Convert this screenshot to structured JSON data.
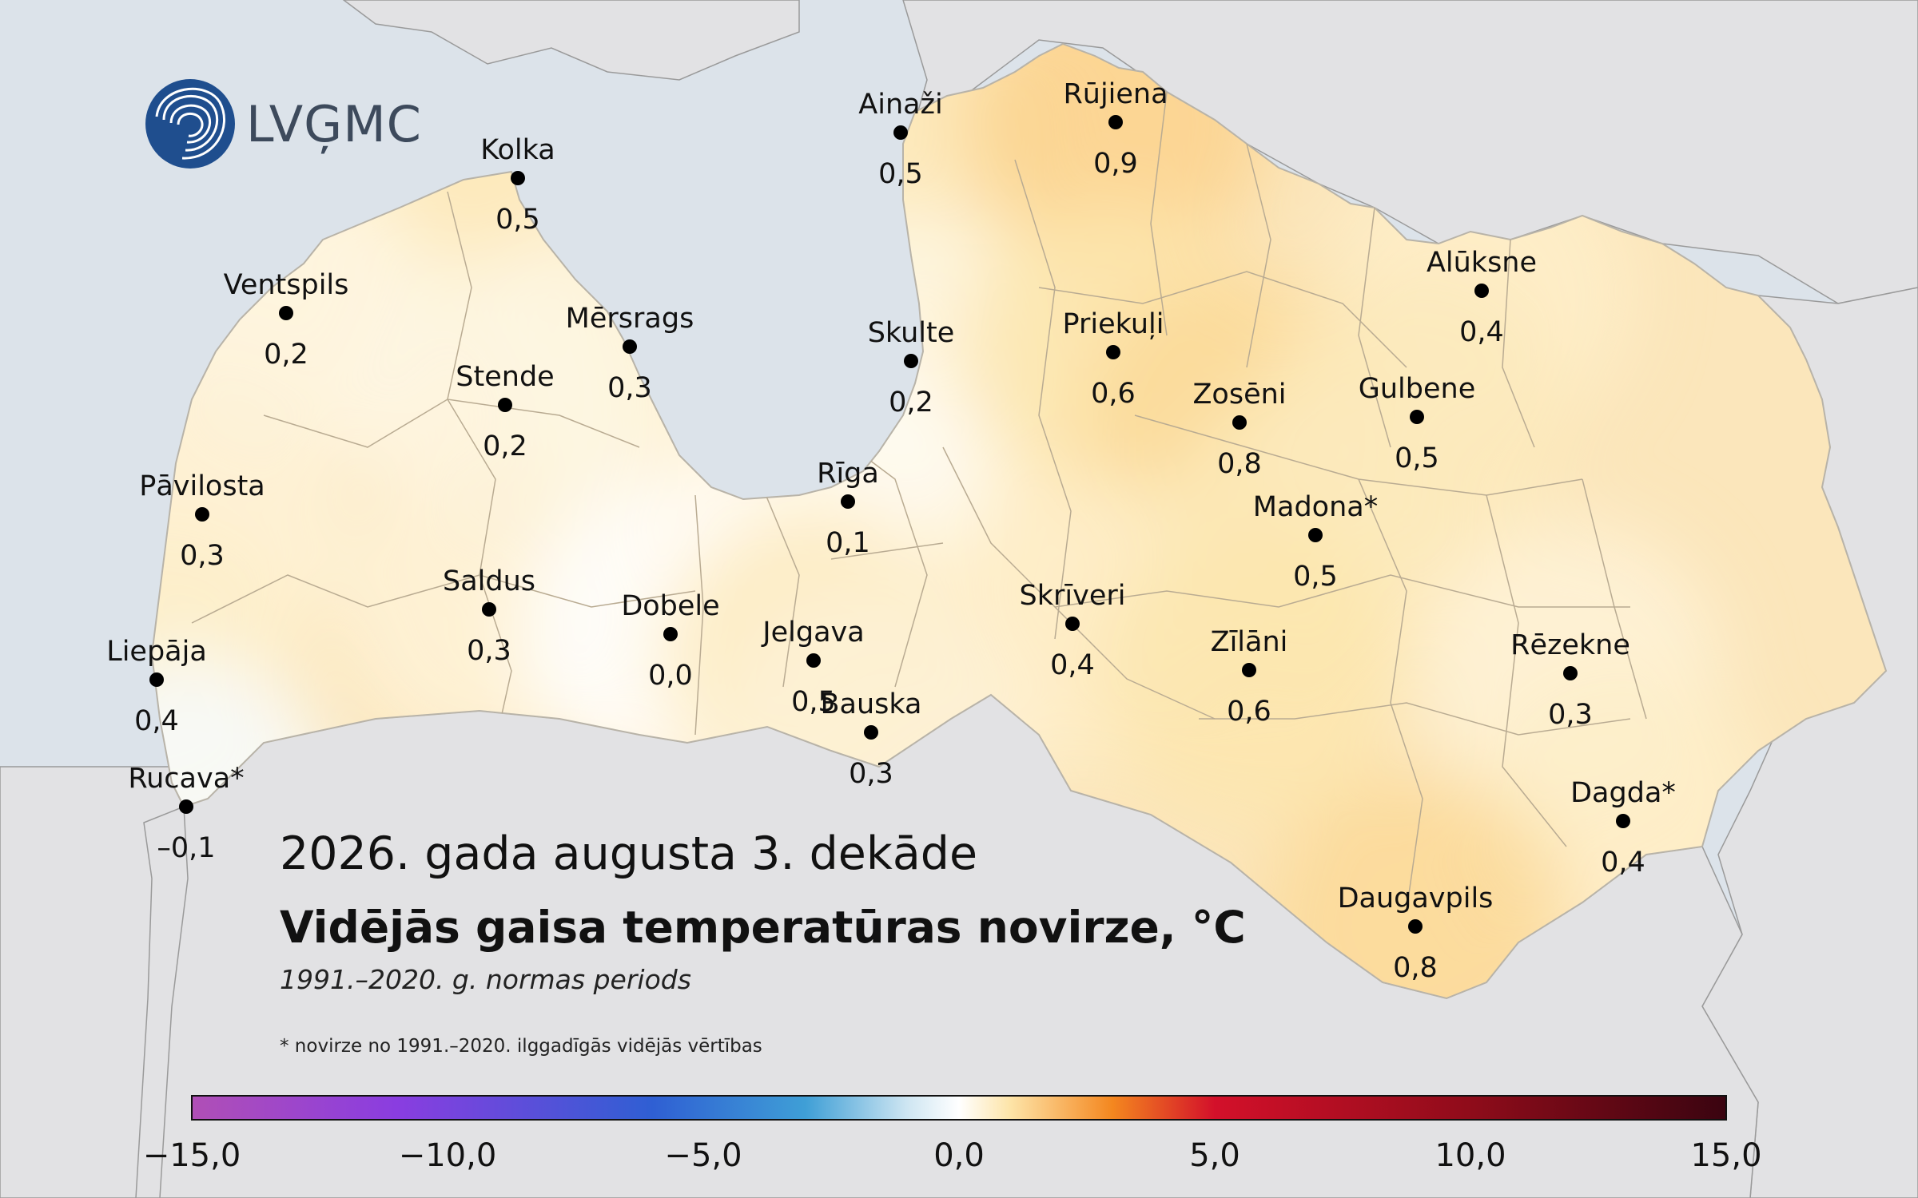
{
  "logo": {
    "text": "LVĢMC"
  },
  "title": {
    "line1": "2026. gada augusta 3. dekāde",
    "line2": "Vidējās gaisa temperatūras novirze, °C",
    "line3": "1991.–2020. g. normas periods"
  },
  "footnote": "* novirze no 1991.–2020. ilggadīgās vidējās vērtības",
  "stations": [
    {
      "name": "Ainaži",
      "value": "0,5",
      "anomaly": 0.5
    },
    {
      "name": "Rūjiena",
      "value": "0,9",
      "anomaly": 0.9
    },
    {
      "name": "Kolka",
      "value": "0,5",
      "anomaly": 0.5
    },
    {
      "name": "Ventspils",
      "value": "0,2",
      "anomaly": 0.2
    },
    {
      "name": "Mērsrags",
      "value": "0,3",
      "anomaly": 0.3
    },
    {
      "name": "Skulte",
      "value": "0,2",
      "anomaly": 0.2
    },
    {
      "name": "Alūksne",
      "value": "0,4",
      "anomaly": 0.4
    },
    {
      "name": "Priekuļi",
      "value": "0,6",
      "anomaly": 0.6
    },
    {
      "name": "Stende",
      "value": "0,2",
      "anomaly": 0.2
    },
    {
      "name": "Zosēni",
      "value": "0,8",
      "anomaly": 0.8
    },
    {
      "name": "Gulbene",
      "value": "0,5",
      "anomaly": 0.5
    },
    {
      "name": "Pāvilosta",
      "value": "0,3",
      "anomaly": 0.3
    },
    {
      "name": "Rīga",
      "value": "0,1",
      "anomaly": 0.1
    },
    {
      "name": "Madona*",
      "value": "0,5",
      "anomaly": 0.5
    },
    {
      "name": "Saldus",
      "value": "0,3",
      "anomaly": 0.3
    },
    {
      "name": "Dobele",
      "value": "0,0",
      "anomaly": 0.0
    },
    {
      "name": "Skrīveri",
      "value": "0,4",
      "anomaly": 0.4
    },
    {
      "name": "Jelgava",
      "value": "0,5",
      "anomaly": 0.5
    },
    {
      "name": "Zīlāni",
      "value": "0,6",
      "anomaly": 0.6
    },
    {
      "name": "Rēzekne",
      "value": "0,3",
      "anomaly": 0.3
    },
    {
      "name": "Liepāja",
      "value": "0,4",
      "anomaly": 0.4
    },
    {
      "name": "Bauska",
      "value": "0,3",
      "anomaly": 0.3
    },
    {
      "name": "Rucava*",
      "value": "–0,1",
      "anomaly": -0.1
    },
    {
      "name": "Dagda*",
      "value": "0,4",
      "anomaly": 0.4
    },
    {
      "name": "Daugavpils",
      "value": "0,8",
      "anomaly": 0.8
    }
  ],
  "legend": {
    "min": -15,
    "max": 15,
    "ticks": [
      {
        "value": -15,
        "label": "−15,0"
      },
      {
        "value": -10,
        "label": "−10,0"
      },
      {
        "value": -5,
        "label": "−5,0"
      },
      {
        "value": 0,
        "label": "0,0"
      },
      {
        "value": 5,
        "label": "5,0"
      },
      {
        "value": 10,
        "label": "10,0"
      },
      {
        "value": 15,
        "label": "15,0"
      }
    ],
    "stops": [
      {
        "value": -15,
        "color": "#b04fb6"
      },
      {
        "value": -11,
        "color": "#8a3de0"
      },
      {
        "value": -6,
        "color": "#2f5fd3"
      },
      {
        "value": -3,
        "color": "#3f9fd6"
      },
      {
        "value": -1,
        "color": "#cfe6f2"
      },
      {
        "value": 0,
        "color": "#ffffff"
      },
      {
        "value": 1,
        "color": "#fde4a8"
      },
      {
        "value": 3,
        "color": "#f4871f"
      },
      {
        "value": 5,
        "color": "#d3102a"
      },
      {
        "value": 10,
        "color": "#8f0c1a"
      },
      {
        "value": 15,
        "color": "#3a0410"
      }
    ]
  },
  "colors": {
    "sea": "#dce3ea",
    "neighbor_land": "#e2e2e4",
    "latvia_base": "#fbe6bb",
    "border_line": "#9a9a9a"
  }
}
